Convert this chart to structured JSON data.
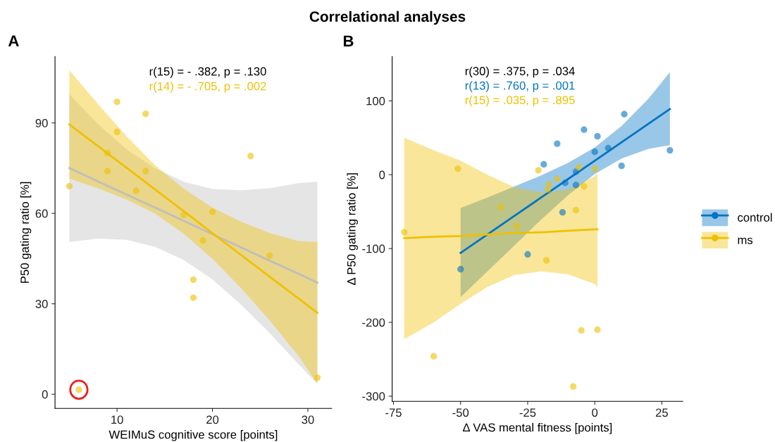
{
  "chart_data": [
    {
      "type": "scatter",
      "title": "A",
      "subtitle": "Correlational analyses",
      "xlabel": "WEIMuS cognitive score [points]",
      "ylabel": "P50 gating ratio [%]",
      "xlim": [
        3.5,
        32.5
      ],
      "ylim": [
        -4.7,
        112
      ],
      "xticks": [
        10,
        20,
        30
      ],
      "yticks": [
        0,
        30,
        60,
        90
      ],
      "grid": false,
      "legend": false,
      "line_style": "solid",
      "annotations": [
        "r(15) = - .382, p = .130",
        "r(14) = - .705, p = .002"
      ],
      "series": [
        {
          "type": "scatter",
          "marker": "circle",
          "color": "#efc000",
          "x": [
            5,
            6,
            10,
            10,
            9,
            9,
            13,
            13,
            12,
            17,
            20,
            19,
            24,
            18,
            18,
            26,
            31
          ],
          "values": [
            69,
            1.5,
            97,
            87,
            80,
            74,
            93,
            74,
            67.5,
            59.5,
            60.5,
            51,
            79,
            38,
            32,
            46,
            5.5
          ]
        },
        {
          "type": "line",
          "color": "#bebebe",
          "x": [
            5,
            8,
            11,
            14,
            17,
            20,
            23,
            26,
            29,
            31
          ],
          "values": [
            75,
            70.6,
            66.2,
            61.9,
            57.5,
            53.1,
            48.7,
            44.3,
            40,
            37
          ],
          "lower": [
            50.5,
            51.6,
            51.2,
            48.9,
            44.5,
            38.1,
            29.7,
            20.3,
            10,
            3.5
          ],
          "upper": [
            99.5,
            89.6,
            81.2,
            74.9,
            70.5,
            68.1,
            67.7,
            68.3,
            70,
            70.5
          ]
        },
        {
          "type": "line",
          "color": "#efc000",
          "x": [
            5,
            8,
            11,
            14,
            17,
            20,
            23,
            26,
            29,
            31
          ],
          "values": [
            89.5,
            82.3,
            75.1,
            67.9,
            60.7,
            53.4,
            46.2,
            39,
            31.8,
            27
          ],
          "lower": [
            71.5,
            68.3,
            64.6,
            59.9,
            53.2,
            44.9,
            35.2,
            24.5,
            12.8,
            3.5
          ],
          "upper": [
            107.5,
            96.3,
            85.6,
            75.9,
            68.2,
            61.9,
            57.2,
            53.5,
            50.8,
            50.5
          ]
        }
      ]
    },
    {
      "type": "scatter",
      "title": "B",
      "xlabel": "Δ VAS mental fitness [points]",
      "ylabel": "Δ P50 gating ratio [%]",
      "xlim": [
        -75.5,
        32.8
      ],
      "ylim": [
        -307,
        160
      ],
      "xticks": [
        -75,
        -50,
        -25,
        0,
        25
      ],
      "yticks": [
        -300,
        -200,
        -100,
        0,
        100
      ],
      "grid": false,
      "legend": "right",
      "line_style": "solid",
      "annotations": [
        "r(30) = .375, p = .034",
        "r(13) = .760, p = .001",
        "r(15) = .035, p = .895"
      ],
      "series": [
        {
          "type": "scatter",
          "marker": "circle",
          "name": "control",
          "color": "#0073c2",
          "x": [
            -19,
            -14,
            -4,
            1,
            0,
            5,
            11,
            28,
            10,
            -7,
            -11,
            -7,
            -50,
            -25,
            -12
          ],
          "values": [
            14,
            42,
            61,
            52,
            31,
            36,
            82,
            33,
            12,
            4,
            -11,
            -14,
            -128,
            -108,
            -51
          ]
        },
        {
          "type": "scatter",
          "marker": "circle",
          "name": "ms",
          "color": "#efc000",
          "x": [
            -51,
            -21,
            -4,
            -7,
            -18,
            -71,
            -60,
            -5,
            1,
            -8,
            -17,
            -14,
            -6,
            -17.5,
            0,
            -35,
            -29
          ],
          "values": [
            8,
            6,
            -16,
            -48,
            -116,
            -78,
            -246,
            -211,
            -210,
            -287,
            -13,
            -6,
            10,
            -20,
            8,
            -44,
            -70
          ]
        },
        {
          "type": "line",
          "color": "#0073c2",
          "x": [
            -50,
            -40,
            -30,
            -20,
            -10,
            0,
            10,
            20,
            28
          ],
          "values": [
            -106,
            -81,
            -56,
            -31,
            -6,
            19,
            44,
            69,
            89
          ],
          "lower": [
            -166,
            -131,
            -96,
            -61,
            -28,
            1,
            22,
            35,
            40
          ],
          "upper": [
            -45,
            -31,
            -16,
            -1,
            16,
            37,
            66,
            103,
            139
          ]
        },
        {
          "type": "line",
          "color": "#efc000",
          "x": [
            -71,
            -60,
            -50,
            -40,
            -30,
            -20,
            -10,
            0,
            1
          ],
          "values": [
            -86,
            -84,
            -83,
            -81,
            -79,
            -78,
            -76,
            -74,
            -74
          ],
          "lower": [
            -223,
            -200,
            -175,
            -152,
            -136,
            -131,
            -135,
            -148,
            -152
          ],
          "upper": [
            50,
            33,
            19,
            0,
            -17,
            -24,
            -20,
            -2,
            2
          ]
        }
      ]
    }
  ]
}
